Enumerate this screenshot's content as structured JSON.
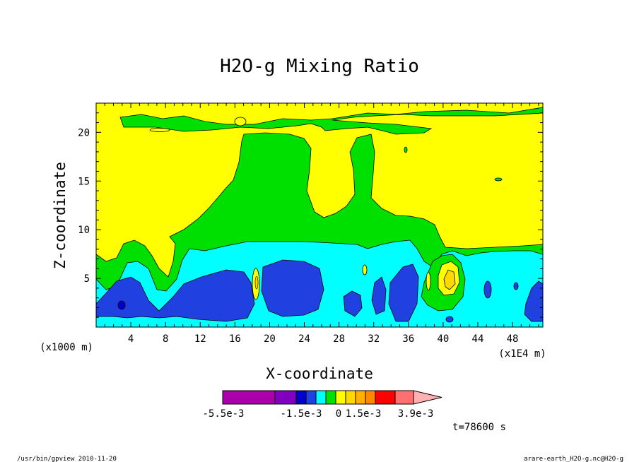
{
  "chart_data": {
    "type": "contour",
    "title": "H2O-g Mixing Ratio",
    "xlabel": "X-coordinate",
    "ylabel": "Z-coordinate",
    "x_unit_left": "(x1000 m)",
    "x_unit_right": "(x1E4 m)",
    "x_ticks": [
      "4",
      "8",
      "12",
      "16",
      "20",
      "24",
      "28",
      "32",
      "36",
      "40",
      "44",
      "48"
    ],
    "y_ticks": [
      "5",
      "10",
      "15",
      "20"
    ],
    "xlim": [
      0,
      51.5
    ],
    "ylim": [
      0,
      23
    ],
    "colorbar": {
      "colors": [
        "#aa00aa",
        "#7f00bf",
        "#0000cc",
        "#2040e0",
        "#00ffff",
        "#00e000",
        "#ffff00",
        "#ffd800",
        "#ffb000",
        "#ff8800",
        "#ff0000",
        "#ff7070",
        "#ffb0b0"
      ],
      "labels": [
        "-5.5e-3",
        "-1.5e-3",
        "0",
        "1.5e-3",
        "3.9e-3"
      ]
    },
    "time_label": "t=78600 s",
    "regions": [
      {
        "name": "background",
        "color": "#ffff00"
      },
      {
        "name": "upper-band",
        "color": "#00e000"
      },
      {
        "name": "central-plume",
        "color": "#00e000"
      },
      {
        "name": "lower-green",
        "color": "#00e000"
      },
      {
        "name": "cyan-layer",
        "color": "#00ffff"
      },
      {
        "name": "blue-core",
        "color": "#2040e0"
      },
      {
        "name": "orange-cell",
        "color": "#ffd800"
      }
    ]
  },
  "footer": {
    "left": "/usr/bin/gpview  2010-11-20",
    "right": "arare-earth_H2O-g.nc@H2O-g"
  }
}
